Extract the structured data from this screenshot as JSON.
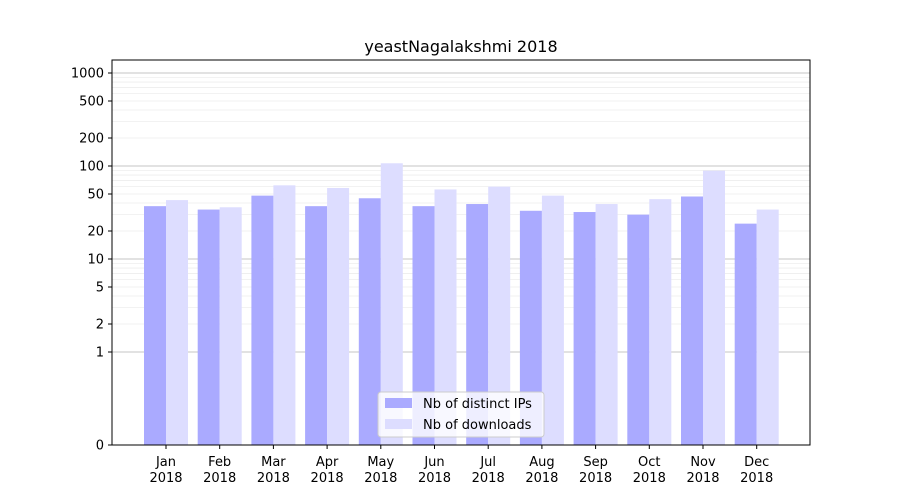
{
  "chart_data": {
    "type": "bar",
    "title": "yeastNagalakshmi 2018",
    "xlabel": "",
    "ylabel": "",
    "yscale": "symlog",
    "ylim": [
      0,
      1200
    ],
    "y_ticks": [
      "0",
      "1",
      "2",
      "5",
      "10",
      "20",
      "50",
      "100",
      "200",
      "500",
      "1000"
    ],
    "grid": true,
    "legend_position": "bottom-center",
    "categories": [
      "Jan\n2018",
      "Feb\n2018",
      "Mar\n2018",
      "Apr\n2018",
      "May\n2018",
      "Jun\n2018",
      "Jul\n2018",
      "Aug\n2018",
      "Sep\n2018",
      "Oct\n2018",
      "Nov\n2018",
      "Dec\n2018"
    ],
    "series": [
      {
        "name": "Nb of distinct IPs",
        "color": "#aaaaff",
        "values": [
          37,
          34,
          48,
          37,
          45,
          37,
          39,
          33,
          32,
          30,
          47,
          24
        ]
      },
      {
        "name": "Nb of downloads",
        "color": "#ddddff",
        "values": [
          43,
          36,
          62,
          58,
          107,
          56,
          60,
          48,
          39,
          44,
          89,
          34
        ]
      }
    ]
  }
}
